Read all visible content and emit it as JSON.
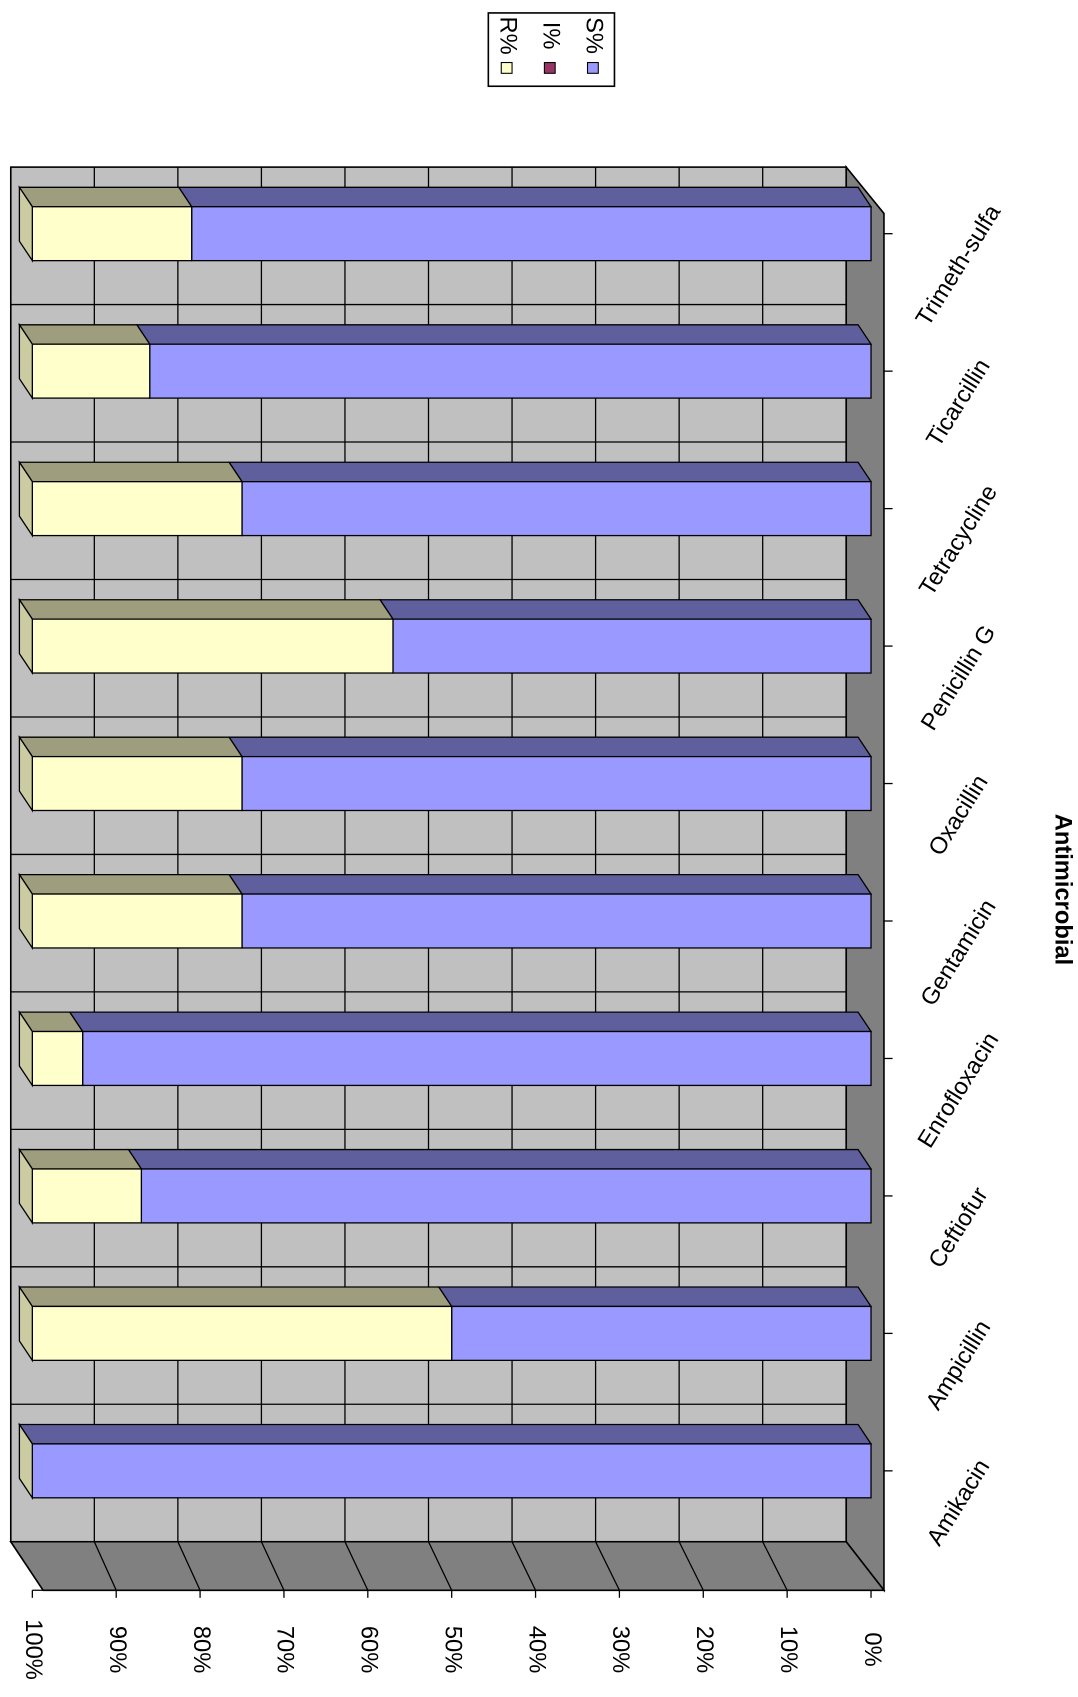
{
  "chart_data": {
    "type": "bar",
    "stacked": true,
    "x_label": "Antimicrobial",
    "categories": [
      "Amikacin",
      "Ampicillin",
      "Ceftiofur",
      "Enrofloxacin",
      "Gentamicin",
      "Oxacillin",
      "Penicillin G",
      "Tetracycline",
      "Ticarcillin",
      "Trimeth-sulfa"
    ],
    "series": [
      {
        "name": "R%",
        "color": "#ffffcc",
        "values": [
          0,
          50,
          13,
          6,
          25,
          25,
          43,
          25,
          14,
          19
        ]
      },
      {
        "name": "I%",
        "color": "#993366",
        "values": [
          0,
          0,
          0,
          0,
          0,
          0,
          0,
          0,
          0,
          0
        ]
      },
      {
        "name": "S%",
        "color": "#9999ff",
        "values": [
          100,
          50,
          87,
          94,
          75,
          75,
          57,
          75,
          86,
          81
        ]
      }
    ],
    "ylim": [
      0,
      100
    ],
    "yticks": [
      {
        "value": 0,
        "label": "0%"
      },
      {
        "value": 10,
        "label": "10%"
      },
      {
        "value": 20,
        "label": "20%"
      },
      {
        "value": 30,
        "label": "30%"
      },
      {
        "value": 40,
        "label": "40%"
      },
      {
        "value": 50,
        "label": "50%"
      },
      {
        "value": 60,
        "label": "60%"
      },
      {
        "value": 70,
        "label": "70%"
      },
      {
        "value": 80,
        "label": "80%"
      },
      {
        "value": 90,
        "label": "90%"
      },
      {
        "value": 100,
        "label": "100%"
      }
    ],
    "grid": true
  }
}
